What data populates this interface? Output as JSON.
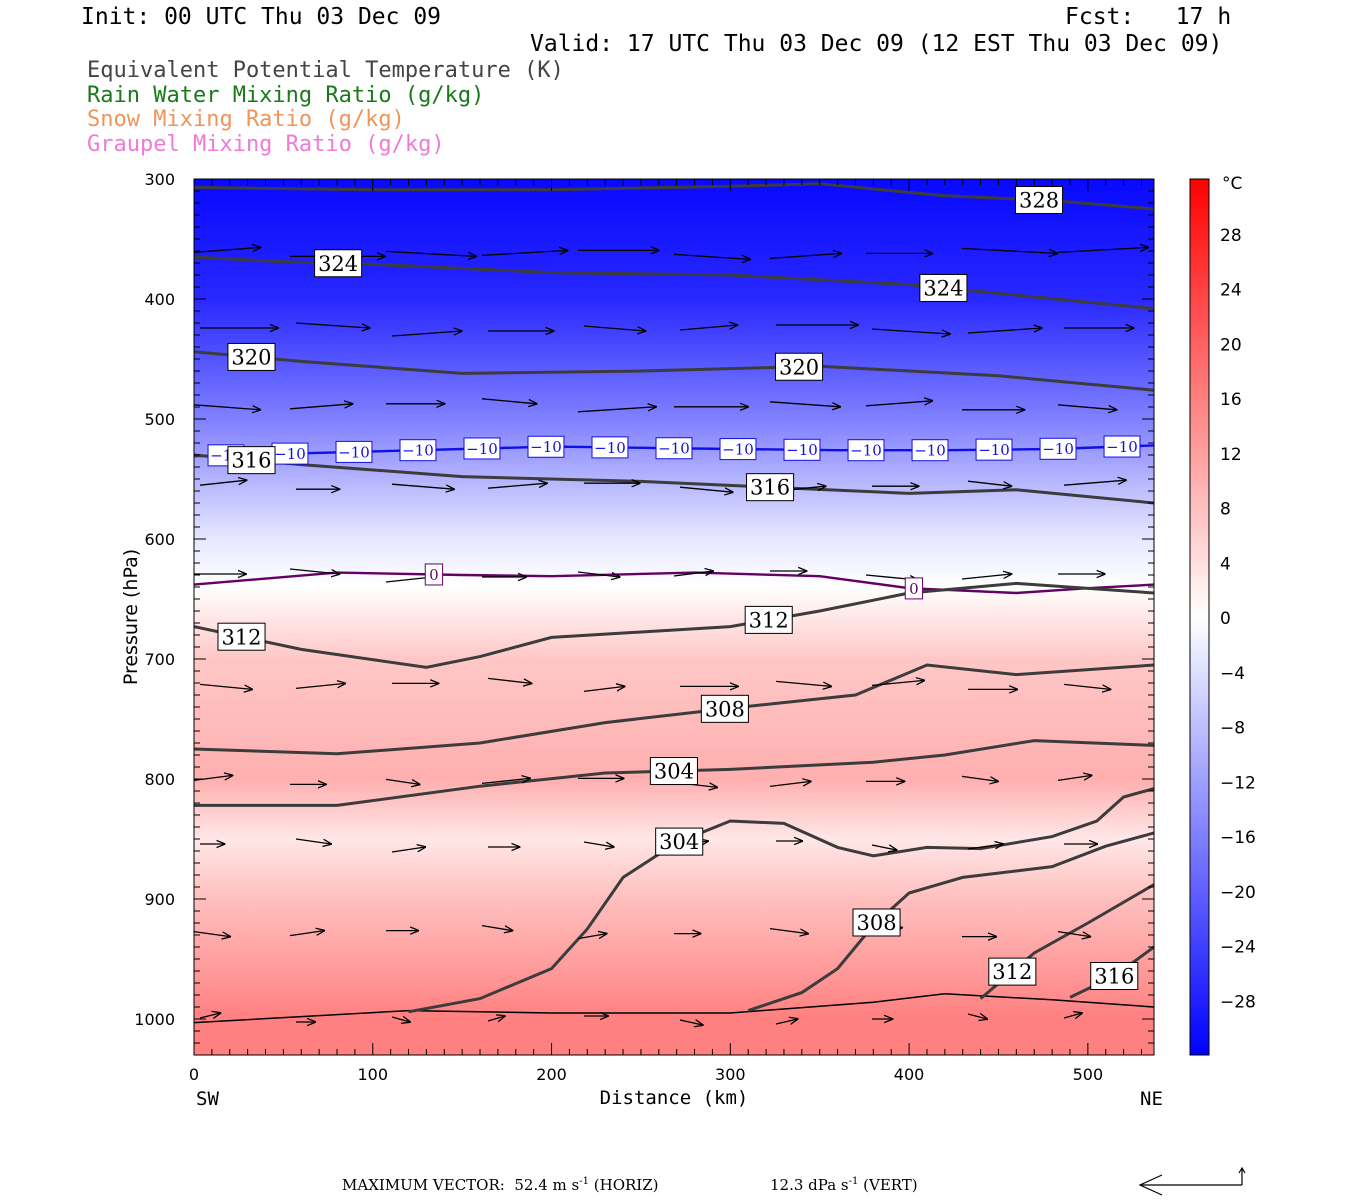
{
  "header": {
    "init": "Init: 00 UTC Thu 03 Dec 09",
    "fcst": "Fcst:   17 h",
    "valid": "Valid: 17 UTC Thu 03 Dec 09 (12 EST Thu 03 Dec 09)"
  },
  "legend": {
    "theta_e": {
      "label": "Equivalent Potential Temperature (K)",
      "color": "#444444"
    },
    "rain": {
      "label": "Rain Water Mixing Ratio (g/kg)",
      "color": "#1a7a1a"
    },
    "snow": {
      "label": "Snow Mixing Ratio (g/kg)",
      "color": "#f0955a"
    },
    "graupel": {
      "label": "Graupel Mixing Ratio (g/kg)",
      "color": "#f07ad8"
    }
  },
  "chart_data": {
    "type": "heatmap",
    "xlabel": "Distance (km)",
    "ylabel": "Pressure (hPa)",
    "xlim": [
      0,
      537
    ],
    "ylim": [
      1030,
      300
    ],
    "x_ticks": [
      0,
      100,
      200,
      300,
      400,
      500
    ],
    "y_ticks": [
      300,
      400,
      500,
      600,
      700,
      800,
      900,
      1000
    ],
    "x_end_labels": {
      "left": "SW",
      "right": "NE"
    },
    "colorbar": {
      "unit": "°C",
      "range": [
        -32,
        32
      ],
      "ticks": [
        28,
        24,
        20,
        16,
        12,
        8,
        4,
        0,
        -4,
        -8,
        -12,
        -16,
        -20,
        -24,
        -28
      ],
      "colors": {
        "cold": "#0000ff",
        "neutral": "#ffffff",
        "warm": "#ff0000"
      }
    },
    "temperature_profile": [
      {
        "p": 300,
        "t": -31
      },
      {
        "p": 400,
        "t": -27
      },
      {
        "p": 500,
        "t": -16
      },
      {
        "p": 600,
        "t": -3
      },
      {
        "p": 640,
        "t": 0
      },
      {
        "p": 700,
        "t": 7
      },
      {
        "p": 800,
        "t": 10
      },
      {
        "p": 850,
        "t": 3
      },
      {
        "p": 900,
        "t": 8
      },
      {
        "p": 1000,
        "t": 16
      }
    ],
    "theta_e_contours": [
      {
        "label": "328",
        "points": [
          [
            0,
            307
          ],
          [
            100,
            309
          ],
          [
            200,
            309
          ],
          [
            300,
            306
          ],
          [
            350,
            304
          ],
          [
            420,
            314
          ],
          [
            480,
            318
          ],
          [
            537,
            325
          ]
        ]
      },
      {
        "label": "324",
        "points": [
          [
            0,
            365
          ],
          [
            50,
            369
          ],
          [
            100,
            371
          ],
          [
            200,
            378
          ],
          [
            300,
            380
          ],
          [
            400,
            388
          ],
          [
            537,
            408
          ]
        ]
      },
      {
        "label": "320",
        "points": [
          [
            0,
            444
          ],
          [
            60,
            452
          ],
          [
            150,
            462
          ],
          [
            250,
            460
          ],
          [
            350,
            456
          ],
          [
            450,
            464
          ],
          [
            537,
            476
          ]
        ]
      },
      {
        "label": "316",
        "points": [
          [
            0,
            530
          ],
          [
            60,
            538
          ],
          [
            150,
            548
          ],
          [
            250,
            552
          ],
          [
            340,
            558
          ],
          [
            400,
            562
          ],
          [
            460,
            559
          ],
          [
            537,
            570
          ]
        ]
      },
      {
        "label": "312",
        "points": [
          [
            0,
            673
          ],
          [
            60,
            692
          ],
          [
            130,
            707
          ],
          [
            160,
            698
          ],
          [
            200,
            682
          ],
          [
            300,
            673
          ],
          [
            350,
            660
          ],
          [
            400,
            645
          ],
          [
            460,
            637
          ],
          [
            537,
            645
          ]
        ]
      },
      {
        "label": "308",
        "points": [
          [
            0,
            775
          ],
          [
            80,
            779
          ],
          [
            160,
            770
          ],
          [
            230,
            753
          ],
          [
            300,
            741
          ],
          [
            370,
            730
          ],
          [
            410,
            705
          ],
          [
            460,
            713
          ],
          [
            537,
            705
          ]
        ]
      },
      {
        "label": "304",
        "points": [
          [
            0,
            822
          ],
          [
            80,
            822
          ],
          [
            160,
            806
          ],
          [
            230,
            795
          ],
          [
            300,
            792
          ],
          [
            380,
            786
          ],
          [
            420,
            780
          ],
          [
            470,
            768
          ],
          [
            537,
            772
          ]
        ]
      },
      {
        "label": "304",
        "points": [
          [
            120,
            994
          ],
          [
            160,
            983
          ],
          [
            200,
            958
          ],
          [
            220,
            925
          ],
          [
            240,
            882
          ],
          [
            270,
            853
          ],
          [
            300,
            835
          ],
          [
            330,
            837
          ],
          [
            360,
            857
          ],
          [
            380,
            864
          ],
          [
            410,
            857
          ],
          [
            440,
            858
          ],
          [
            480,
            848
          ],
          [
            505,
            835
          ],
          [
            520,
            815
          ],
          [
            537,
            808
          ]
        ]
      },
      {
        "label": "308",
        "points": [
          [
            310,
            993
          ],
          [
            340,
            978
          ],
          [
            360,
            958
          ],
          [
            380,
            922
          ],
          [
            400,
            895
          ],
          [
            430,
            882
          ],
          [
            480,
            873
          ],
          [
            510,
            856
          ],
          [
            537,
            845
          ]
        ]
      },
      {
        "label": "312",
        "points": [
          [
            440,
            983
          ],
          [
            470,
            945
          ],
          [
            500,
            920
          ],
          [
            537,
            888
          ]
        ]
      },
      {
        "label": "316",
        "points": [
          [
            490,
            982
          ],
          [
            515,
            964
          ],
          [
            537,
            940
          ]
        ]
      }
    ],
    "isotherms": [
      {
        "label": "-10",
        "color": "#1010e6",
        "points": [
          [
            0,
            531
          ],
          [
            100,
            527
          ],
          [
            200,
            523
          ],
          [
            300,
            525
          ],
          [
            360,
            526
          ],
          [
            420,
            526
          ],
          [
            480,
            525
          ],
          [
            537,
            522
          ]
        ]
      },
      {
        "label": "0",
        "color": "#660066",
        "points": [
          [
            0,
            638
          ],
          [
            80,
            628
          ],
          [
            150,
            630
          ],
          [
            200,
            631
          ],
          [
            280,
            628
          ],
          [
            350,
            631
          ],
          [
            400,
            641
          ],
          [
            460,
            645
          ],
          [
            500,
            641
          ],
          [
            537,
            638
          ]
        ]
      }
    ],
    "surface": [
      [
        0,
        1003
      ],
      [
        60,
        998
      ],
      [
        120,
        993
      ],
      [
        200,
        995
      ],
      [
        300,
        995
      ],
      [
        380,
        986
      ],
      [
        420,
        979
      ],
      [
        480,
        984
      ],
      [
        537,
        990
      ]
    ],
    "wind_rows": [
      {
        "p": 362,
        "count": 10,
        "len": 95
      },
      {
        "p": 425,
        "count": 10,
        "len": 82
      },
      {
        "p": 489,
        "count": 10,
        "len": 78
      },
      {
        "p": 556,
        "count": 10,
        "len": 62
      },
      {
        "p": 630,
        "count": 10,
        "len": 52
      },
      {
        "p": 722,
        "count": 10,
        "len": 58
      },
      {
        "p": 802,
        "count": 10,
        "len": 48
      },
      {
        "p": 855,
        "count": 10,
        "len": 35
      },
      {
        "p": 928,
        "count": 10,
        "len": 38
      },
      {
        "p": 1000,
        "count": 10,
        "len": 24
      }
    ],
    "footer": {
      "prefix": "MAXIMUM VECTOR:",
      "horiz_value": "52.4 m s",
      "horiz_exp": "-1",
      "horiz_tag": "(HORIZ)",
      "vert_value": "12.3 dPa s",
      "vert_exp": "-1",
      "vert_tag": "(VERT)"
    }
  }
}
